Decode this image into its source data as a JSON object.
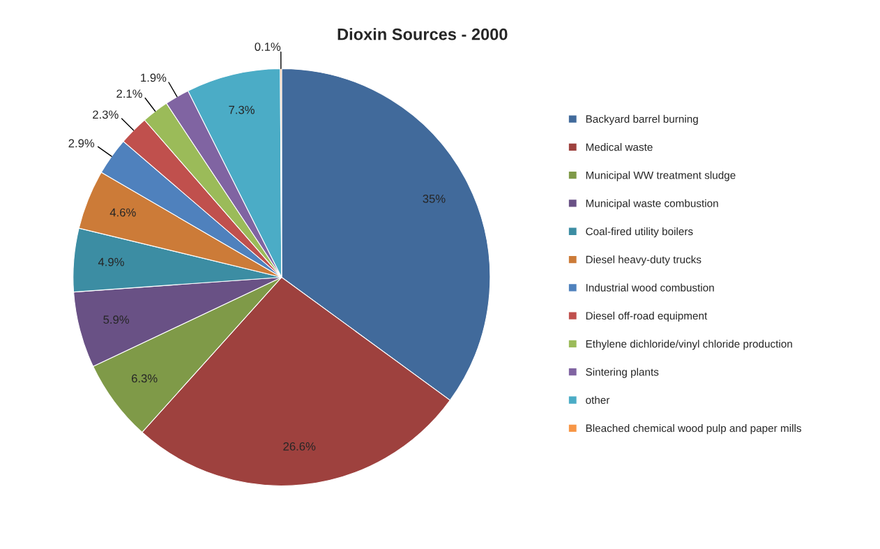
{
  "chart_data": {
    "type": "pie",
    "title": "Dioxin Sources - 2000",
    "categories": [
      "Backyard barrel burning",
      "Medical waste",
      "Municipal WW treatment sludge",
      "Municipal waste combustion",
      "Coal-fired utility boilers",
      "Diesel heavy-duty trucks",
      "Industrial wood combustion",
      "Diesel off-road equipment",
      "Ethylene dichloride/vinyl chloride production",
      "Sintering plants",
      "other",
      "Bleached chemical wood pulp and paper mills"
    ],
    "values": [
      35,
      26.6,
      6.3,
      5.9,
      4.9,
      4.6,
      2.9,
      2.3,
      2.1,
      1.9,
      7.3,
      0.1
    ],
    "colors": [
      "#416a9b",
      "#9e413e",
      "#7f9a48",
      "#695185",
      "#3c8da3",
      "#cc7b38",
      "#4f81bd",
      "#c0504d",
      "#9bbb59",
      "#8064a2",
      "#4bacc6",
      "#f79646"
    ],
    "value_labels": [
      "35%",
      "26.6%",
      "6.3%",
      "5.9%",
      "4.9%",
      "4.6%",
      "2.9%",
      "2.3%",
      "2.1%",
      "1.9%",
      "7.3%",
      "0.1%"
    ],
    "legend": "right"
  }
}
